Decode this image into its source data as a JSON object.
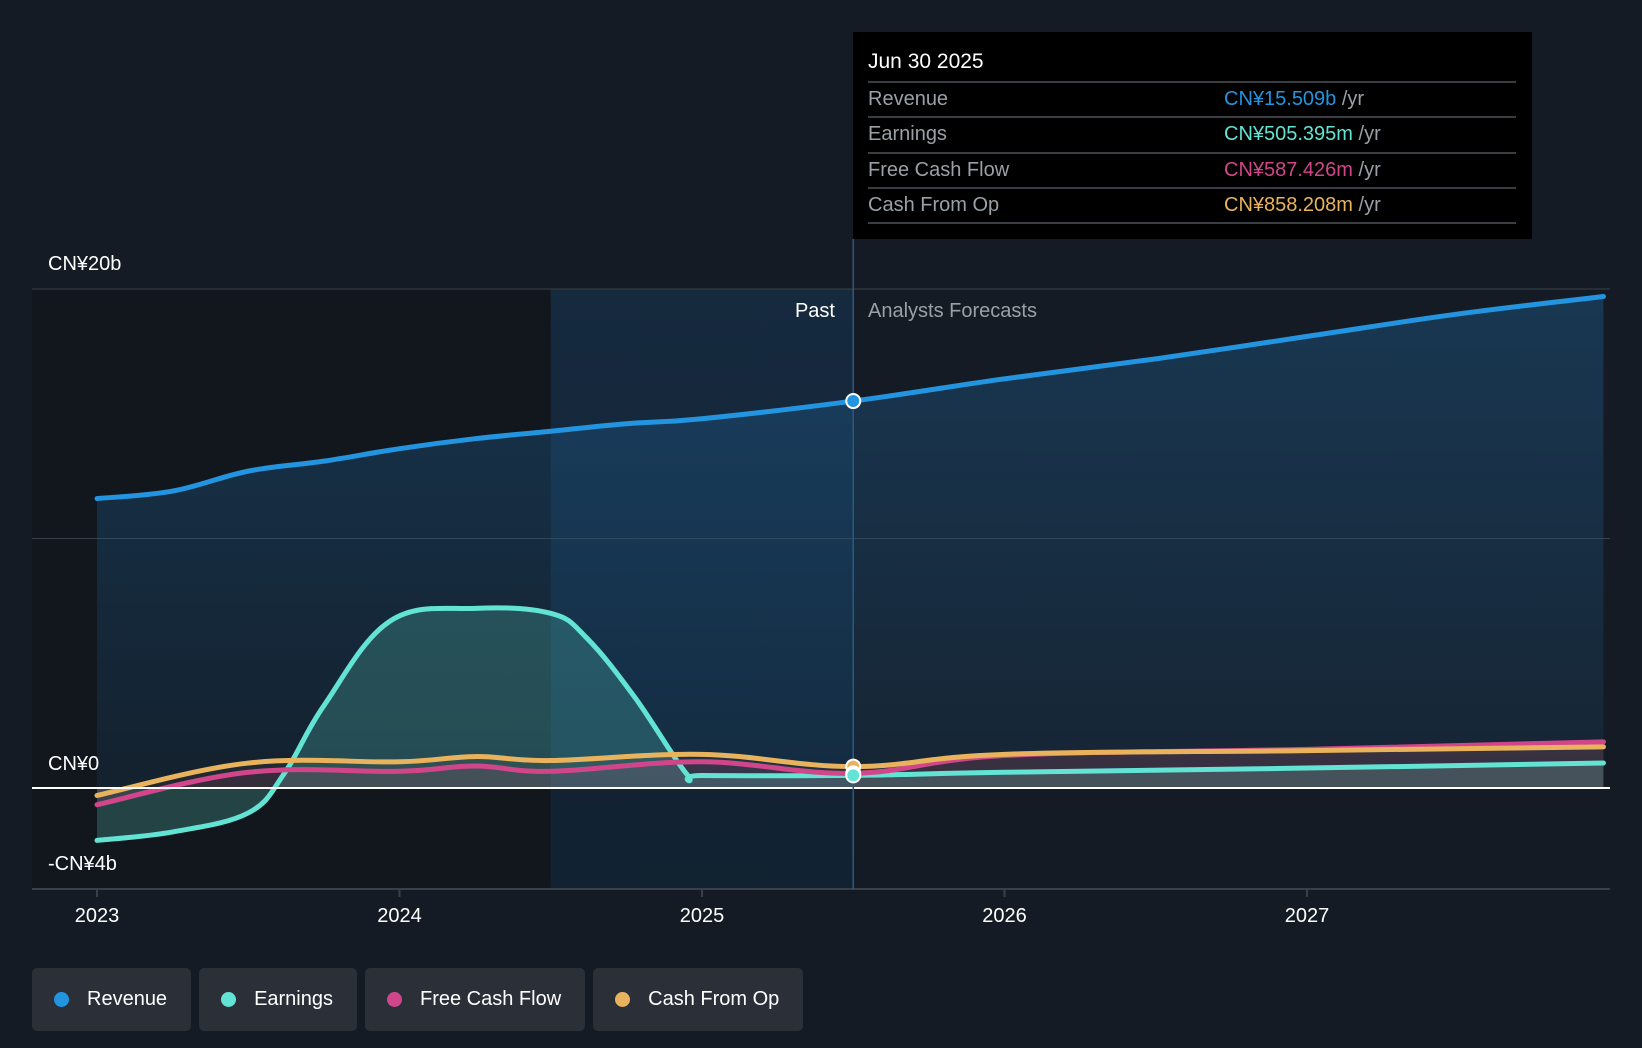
{
  "tooltip": {
    "date": "Jun 30 2025",
    "rows": [
      {
        "label": "Revenue",
        "value": "CN¥15.509b",
        "unit": "/yr"
      },
      {
        "label": "Earnings",
        "value": "CN¥505.395m",
        "unit": "/yr"
      },
      {
        "label": "Free Cash Flow",
        "value": "CN¥587.426m",
        "unit": "/yr"
      },
      {
        "label": "Cash From Op",
        "value": "CN¥858.208m",
        "unit": "/yr"
      }
    ]
  },
  "regions": {
    "past": "Past",
    "forecast": "Analysts Forecasts"
  },
  "legend": [
    {
      "label": "Revenue",
      "color": "#2394e0"
    },
    {
      "label": "Earnings",
      "color": "#62e3d3"
    },
    {
      "label": "Free Cash Flow",
      "color": "#d1468a"
    },
    {
      "label": "Cash From Op",
      "color": "#e9b25c"
    }
  ],
  "chart_data": {
    "type": "line",
    "title": "",
    "xlabel": "",
    "ylabel": "",
    "unit": "CN¥ billions",
    "xlim": [
      2022.8,
      2027.98
    ],
    "ylim": [
      -4,
      20
    ],
    "y_tick_labels": [
      "CN¥20b",
      "CN¥0",
      "-CN¥4b"
    ],
    "x_tick_labels": [
      "2023",
      "2024",
      "2025",
      "2026",
      "2027"
    ],
    "x_ticks": [
      2023,
      2024,
      2025,
      2026,
      2027
    ],
    "past_end": 2025.5,
    "highlight_start": 2024.5,
    "grid": true,
    "legend_position": "bottom",
    "series": [
      {
        "name": "Revenue",
        "color": "#2394e0",
        "x": [
          2023,
          2023.25,
          2023.5,
          2023.75,
          2024,
          2024.25,
          2024.5,
          2024.75,
          2025,
          2025.5,
          2026,
          2026.5,
          2027,
          2027.5,
          2027.98
        ],
        "values": [
          11.6,
          11.9,
          12.7,
          13.1,
          13.6,
          14.0,
          14.3,
          14.6,
          14.8,
          15.509,
          16.4,
          17.2,
          18.1,
          19.0,
          19.7
        ]
      },
      {
        "name": "Earnings",
        "color": "#62e3d3",
        "x": [
          2023,
          2023.25,
          2023.5,
          2023.62,
          2023.75,
          2023.97,
          2024.25,
          2024.5,
          2024.62,
          2024.78,
          2024.95,
          2025,
          2025.5,
          2026,
          2027,
          2027.98
        ],
        "values": [
          -2.1,
          -1.76,
          -1.0,
          0.6,
          3.3,
          6.7,
          7.2,
          7.0,
          6.0,
          3.6,
          0.55,
          0.5,
          0.505,
          0.63,
          0.8,
          1.0
        ]
      },
      {
        "name": "Free Cash Flow",
        "color": "#d1468a",
        "x": [
          2023,
          2023.5,
          2024,
          2024.25,
          2024.5,
          2025,
          2025.5,
          2026,
          2027,
          2027.98
        ],
        "values": [
          -0.67,
          0.63,
          0.67,
          0.88,
          0.67,
          1.05,
          0.587,
          1.3,
          1.55,
          1.85
        ]
      },
      {
        "name": "Cash From Op",
        "color": "#e9b25c",
        "x": [
          2023,
          2023.5,
          2024,
          2024.25,
          2024.5,
          2025,
          2025.5,
          2026,
          2027,
          2027.98
        ],
        "values": [
          -0.3,
          1.0,
          1.05,
          1.26,
          1.1,
          1.35,
          0.858,
          1.35,
          1.5,
          1.65
        ]
      }
    ]
  }
}
